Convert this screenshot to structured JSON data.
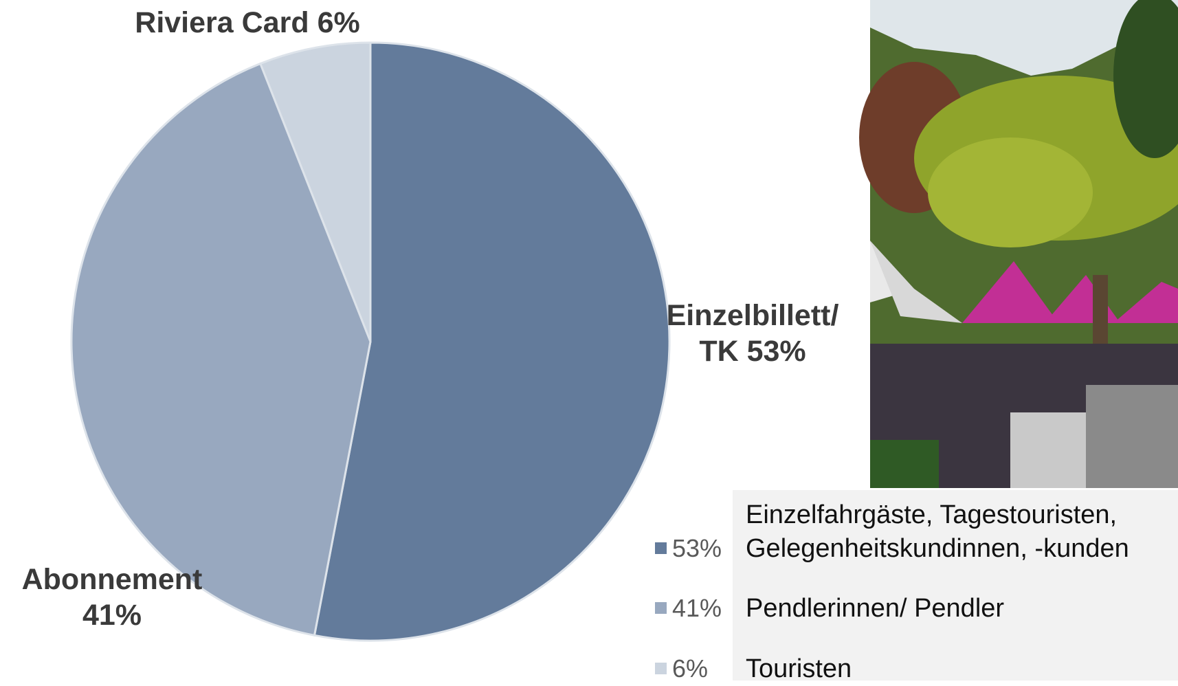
{
  "chart_data": {
    "type": "pie",
    "categories": [
      "Einzelbillett/ TK",
      "Abonnement",
      "Riviera Card"
    ],
    "values": [
      53,
      41,
      6
    ],
    "value_labels": [
      "53%",
      "41%",
      "6%"
    ],
    "colors": [
      "#637b9b",
      "#98a8bf",
      "#cbd4df"
    ],
    "descriptions": [
      "Einzelfahrgäste, Tagestouristen, Gelegenheitskundinnen, -kunden",
      "Pendlerinnen/ Pendler",
      "Touristen"
    ]
  }
}
